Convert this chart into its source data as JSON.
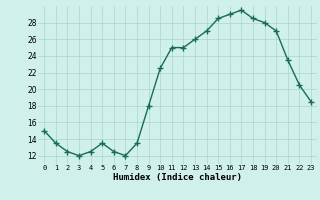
{
  "x": [
    0,
    1,
    2,
    3,
    4,
    5,
    6,
    7,
    8,
    9,
    10,
    11,
    12,
    13,
    14,
    15,
    16,
    17,
    18,
    19,
    20,
    21,
    22,
    23
  ],
  "y": [
    15,
    13.5,
    12.5,
    12,
    12.5,
    13.5,
    12.5,
    12,
    13.5,
    18,
    22.5,
    25,
    25,
    26,
    27,
    28.5,
    29,
    29.5,
    28.5,
    28,
    27,
    23.5,
    20.5,
    18.5
  ],
  "xlabel": "Humidex (Indice chaleur)",
  "ylabel_ticks": [
    12,
    14,
    16,
    18,
    20,
    22,
    24,
    26,
    28
  ],
  "ylim": [
    11,
    30
  ],
  "xlim": [
    -0.5,
    23.5
  ],
  "bg_color": "#cff0eb",
  "grid_color": "#aad4cc",
  "line_color": "#1a6b5a",
  "marker": "+",
  "linewidth": 1.0,
  "markersize": 4,
  "markeredgewidth": 1.0
}
